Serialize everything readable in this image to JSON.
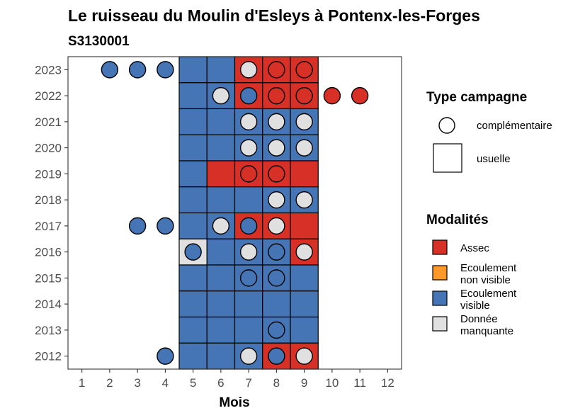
{
  "chart_data": {
    "type": "heatmap",
    "title": "Le ruisseau du Moulin d'Esleys à Pontenx-les-Forges",
    "subtitle": "S3130001",
    "xlabel": "Mois",
    "ylabel": "",
    "x_ticks": [
      1,
      2,
      3,
      4,
      5,
      6,
      7,
      8,
      9,
      10,
      11,
      12
    ],
    "y_ticks": [
      2012,
      2013,
      2014,
      2015,
      2016,
      2017,
      2018,
      2019,
      2020,
      2021,
      2022,
      2023
    ],
    "xlim": [
      0.5,
      12.5
    ],
    "ylim": [
      2011.5,
      2023.5
    ],
    "colors": {
      "Assec": "#d73027",
      "Ecoulement non visible": "#fe9929",
      "Ecoulement visible": "#4575b4",
      "Donnée manquante": "#e0e0e0"
    },
    "usuelle": [
      {
        "year": 2023,
        "cells": [
          "Ecoulement visible",
          "Ecoulement visible",
          "Assec",
          "Assec",
          "Assec"
        ]
      },
      {
        "year": 2022,
        "cells": [
          "Ecoulement visible",
          "Ecoulement visible",
          "Assec",
          "Assec",
          "Assec"
        ]
      },
      {
        "year": 2021,
        "cells": [
          "Ecoulement visible",
          "Ecoulement visible",
          "Ecoulement visible",
          "Ecoulement visible",
          "Ecoulement visible"
        ]
      },
      {
        "year": 2020,
        "cells": [
          "Ecoulement visible",
          "Ecoulement visible",
          "Ecoulement visible",
          "Ecoulement visible",
          "Ecoulement visible"
        ]
      },
      {
        "year": 2019,
        "cells": [
          "Ecoulement visible",
          "Assec",
          "Assec",
          "Assec",
          "Assec"
        ]
      },
      {
        "year": 2018,
        "cells": [
          "Ecoulement visible",
          "Ecoulement visible",
          "Ecoulement visible",
          "Ecoulement visible",
          "Ecoulement visible"
        ]
      },
      {
        "year": 2017,
        "cells": [
          "Ecoulement visible",
          "Ecoulement visible",
          "Assec",
          "Assec",
          "Assec"
        ]
      },
      {
        "year": 2016,
        "cells": [
          "Donnée manquante",
          "Ecoulement visible",
          "Ecoulement visible",
          "Ecoulement visible",
          "Assec"
        ]
      },
      {
        "year": 2015,
        "cells": [
          "Ecoulement visible",
          "Ecoulement visible",
          "Ecoulement visible",
          "Ecoulement visible",
          "Ecoulement visible"
        ]
      },
      {
        "year": 2014,
        "cells": [
          "Ecoulement visible",
          "Ecoulement visible",
          "Ecoulement visible",
          "Ecoulement visible",
          "Ecoulement visible"
        ]
      },
      {
        "year": 2013,
        "cells": [
          "Ecoulement visible",
          "Ecoulement visible",
          "Ecoulement visible",
          "Ecoulement visible",
          "Ecoulement visible"
        ]
      },
      {
        "year": 2012,
        "cells": [
          "Ecoulement visible",
          "Ecoulement visible",
          "Ecoulement visible",
          "Assec",
          "Assec"
        ]
      }
    ],
    "usuelle_months": [
      5,
      6,
      7,
      8,
      9
    ],
    "complementaire": [
      {
        "year": 2023,
        "month": 2,
        "modalite": "Ecoulement visible"
      },
      {
        "year": 2023,
        "month": 3,
        "modalite": "Ecoulement visible"
      },
      {
        "year": 2023,
        "month": 4,
        "modalite": "Ecoulement visible"
      },
      {
        "year": 2023,
        "month": 7,
        "modalite": "Donnée manquante"
      },
      {
        "year": 2023,
        "month": 8,
        "modalite": "Assec"
      },
      {
        "year": 2023,
        "month": 9,
        "modalite": "Assec"
      },
      {
        "year": 2022,
        "month": 6,
        "modalite": "Donnée manquante"
      },
      {
        "year": 2022,
        "month": 7,
        "modalite": "Ecoulement visible"
      },
      {
        "year": 2022,
        "month": 8,
        "modalite": "Assec"
      },
      {
        "year": 2022,
        "month": 9,
        "modalite": "Assec"
      },
      {
        "year": 2022,
        "month": 10,
        "modalite": "Assec"
      },
      {
        "year": 2022,
        "month": 11,
        "modalite": "Assec"
      },
      {
        "year": 2021,
        "month": 7,
        "modalite": "Donnée manquante"
      },
      {
        "year": 2021,
        "month": 8,
        "modalite": "Donnée manquante"
      },
      {
        "year": 2021,
        "month": 9,
        "modalite": "Donnée manquante"
      },
      {
        "year": 2020,
        "month": 7,
        "modalite": "Donnée manquante"
      },
      {
        "year": 2020,
        "month": 8,
        "modalite": "Donnée manquante"
      },
      {
        "year": 2020,
        "month": 9,
        "modalite": "Donnée manquante"
      },
      {
        "year": 2019,
        "month": 7,
        "modalite": "Assec"
      },
      {
        "year": 2019,
        "month": 8,
        "modalite": "Assec"
      },
      {
        "year": 2018,
        "month": 8,
        "modalite": "Donnée manquante"
      },
      {
        "year": 2018,
        "month": 9,
        "modalite": "Donnée manquante"
      },
      {
        "year": 2017,
        "month": 3,
        "modalite": "Ecoulement visible"
      },
      {
        "year": 2017,
        "month": 4,
        "modalite": "Ecoulement visible"
      },
      {
        "year": 2017,
        "month": 6,
        "modalite": "Donnée manquante"
      },
      {
        "year": 2017,
        "month": 7,
        "modalite": "Ecoulement visible"
      },
      {
        "year": 2017,
        "month": 8,
        "modalite": "Donnée manquante"
      },
      {
        "year": 2016,
        "month": 5,
        "modalite": "Ecoulement visible"
      },
      {
        "year": 2016,
        "month": 7,
        "modalite": "Donnée manquante"
      },
      {
        "year": 2016,
        "month": 8,
        "modalite": "Ecoulement visible"
      },
      {
        "year": 2016,
        "month": 9,
        "modalite": "Donnée manquante"
      },
      {
        "year": 2015,
        "month": 7,
        "modalite": "Ecoulement visible"
      },
      {
        "year": 2015,
        "month": 8,
        "modalite": "Ecoulement visible"
      },
      {
        "year": 2013,
        "month": 8,
        "modalite": "Ecoulement visible"
      },
      {
        "year": 2012,
        "month": 4,
        "modalite": "Ecoulement visible"
      },
      {
        "year": 2012,
        "month": 7,
        "modalite": "Donnée manquante"
      },
      {
        "year": 2012,
        "month": 8,
        "modalite": "Ecoulement visible"
      },
      {
        "year": 2012,
        "month": 9,
        "modalite": "Donnée manquante"
      }
    ],
    "legend_type": {
      "title": "Type campagne",
      "items": [
        "complémentaire",
        "usuelle"
      ]
    },
    "legend_modalites": {
      "title": "Modalités",
      "items": [
        {
          "key": "Assec",
          "lines": [
            "Assec"
          ]
        },
        {
          "key": "Ecoulement non visible",
          "lines": [
            "Ecoulement",
            "non visible"
          ]
        },
        {
          "key": "Ecoulement visible",
          "lines": [
            "Ecoulement",
            "visible"
          ]
        },
        {
          "key": "Donnée manquante",
          "lines": [
            "Donnée",
            "manquante"
          ]
        }
      ]
    }
  }
}
